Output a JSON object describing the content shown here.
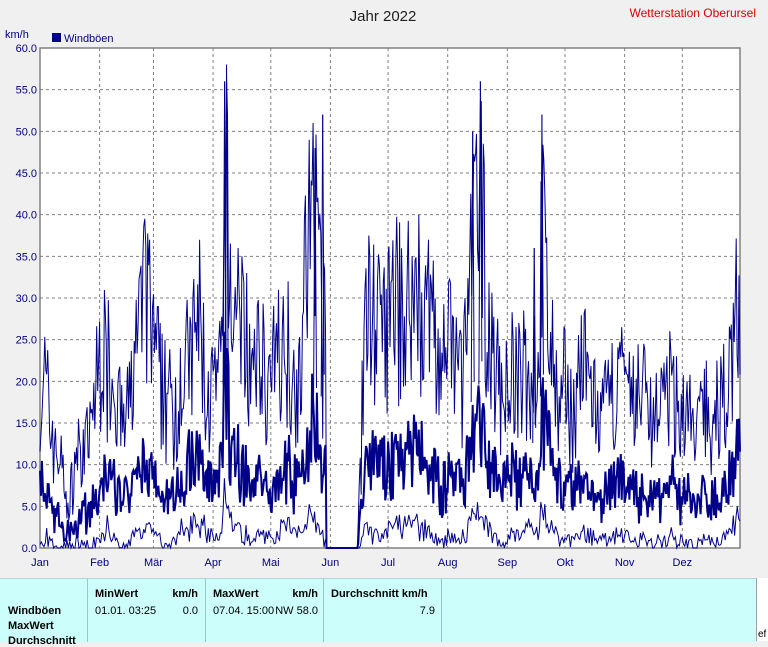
{
  "chart_data": {
    "type": "line",
    "title": "Jahr 2022",
    "station": "Wetterstation Oberursel",
    "ylabel": "km/h",
    "xlabel": "",
    "ylim": [
      0,
      60
    ],
    "yticks": [
      "0.0",
      "5.0",
      "10.0",
      "15.0",
      "20.0",
      "25.0",
      "30.0",
      "35.0",
      "40.0",
      "45.0",
      "50.0",
      "55.0",
      "60.0"
    ],
    "xticks": [
      "Jan",
      "Feb",
      "Mär",
      "Apr",
      "Mai",
      "Jun",
      "Jul",
      "Aug",
      "Sep",
      "Okt",
      "Nov",
      "Dez"
    ],
    "grid": true,
    "legend_position": "top-left",
    "series": [
      {
        "name": "Windböen",
        "color": "#00008b",
        "x_unit": "day of year",
        "x": [
          1,
          4,
          8,
          12,
          16,
          20,
          24,
          28,
          32,
          36,
          40,
          44,
          48,
          52,
          56,
          60,
          64,
          68,
          72,
          76,
          80,
          84,
          88,
          92,
          96,
          97,
          98,
          100,
          104,
          108,
          112,
          116,
          120,
          124,
          128,
          132,
          136,
          140,
          144,
          148,
          150,
          152,
          154,
          158,
          162,
          166,
          170,
          174,
          178,
          182,
          186,
          190,
          194,
          198,
          202,
          206,
          210,
          214,
          218,
          222,
          226,
          230,
          234,
          238,
          242,
          246,
          250,
          254,
          258,
          261,
          262,
          266,
          270,
          274,
          278,
          282,
          286,
          290,
          294,
          298,
          302,
          306,
          310,
          314,
          318,
          322,
          326,
          330,
          334,
          338,
          342,
          346,
          350,
          354,
          358,
          362,
          365
        ],
        "upper": [
          22,
          26,
          18,
          14,
          6,
          16,
          14,
          20,
          32,
          30,
          28,
          18,
          24,
          36,
          40,
          34,
          26,
          24,
          20,
          28,
          32,
          38,
          24,
          26,
          28,
          56,
          58,
          40,
          36,
          34,
          26,
          32,
          26,
          30,
          34,
          30,
          28,
          48,
          52,
          33,
          34,
          32,
          0,
          0,
          0,
          0,
          36,
          39,
          34,
          36,
          40,
          38,
          40,
          40,
          38,
          34,
          30,
          34,
          28,
          30,
          50,
          56,
          36,
          28,
          26,
          28,
          26,
          30,
          28,
          36,
          52,
          36,
          22,
          26,
          20,
          30,
          28,
          22,
          20,
          26,
          28,
          24,
          24,
          26,
          20,
          24,
          22,
          26,
          20,
          22,
          18,
          24,
          20,
          22,
          26,
          37,
          41
        ],
        "mid": [
          11,
          9,
          6,
          4,
          3,
          5,
          6,
          7,
          9,
          12,
          10,
          8,
          9,
          11,
          13,
          11,
          9,
          8,
          10,
          12,
          14,
          15,
          10,
          11,
          12,
          30,
          26,
          18,
          14,
          12,
          10,
          12,
          10,
          11,
          13,
          12,
          10,
          18,
          22,
          14,
          12,
          8,
          0,
          0,
          0,
          0,
          14,
          15,
          13,
          14,
          15,
          14,
          16,
          16,
          14,
          12,
          10,
          11,
          10,
          12,
          18,
          20,
          13,
          11,
          10,
          12,
          11,
          12,
          13,
          14,
          22,
          16,
          12,
          10,
          9,
          11,
          10,
          9,
          8,
          10,
          11,
          10,
          9,
          10,
          8,
          9,
          9,
          10,
          8,
          9,
          7,
          9,
          8,
          9,
          10,
          14,
          18
        ],
        "low": [
          0,
          2,
          0,
          0,
          0,
          1,
          0,
          0,
          2,
          3,
          1,
          0,
          1,
          3,
          4,
          2,
          1,
          0,
          2,
          3,
          4,
          5,
          2,
          2,
          3,
          10,
          8,
          4,
          3,
          2,
          1,
          3,
          2,
          2,
          4,
          3,
          2,
          5,
          6,
          2,
          1,
          0,
          0,
          0,
          0,
          0,
          3,
          3,
          2,
          3,
          4,
          3,
          4,
          4,
          3,
          2,
          1,
          2,
          1,
          2,
          5,
          6,
          3,
          2,
          1,
          2,
          2,
          3,
          3,
          4,
          6,
          3,
          2,
          1,
          1,
          2,
          2,
          1,
          1,
          2,
          2,
          2,
          1,
          2,
          1,
          1,
          1,
          2,
          1,
          1,
          0,
          1,
          1,
          1,
          2,
          4,
          6
        ]
      }
    ]
  },
  "stats": {
    "headers": {
      "min": "MinWert",
      "min_unit": "km/h",
      "max": "MaxWert",
      "max_unit": "km/h",
      "avg": "Durchschnitt km/h"
    },
    "rows": [
      {
        "label": "Windböen",
        "min_time": "01.01.  03:25",
        "min_value": "0.0",
        "max_time": "07.04.  15:00",
        "max_dir_value": "NW 58.0",
        "avg": "7.9"
      }
    ],
    "row_labels_extra": [
      "MaxWert",
      "Durchschnitt"
    ]
  },
  "cut_text": "ef"
}
